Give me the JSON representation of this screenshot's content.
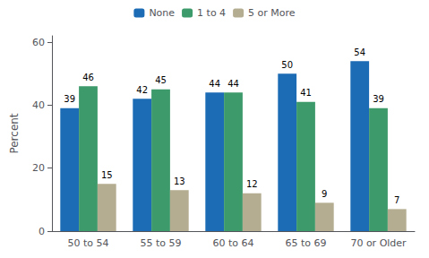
{
  "chart_data": {
    "type": "bar",
    "categories": [
      "50 to 54",
      "55 to 59",
      "60 to 64",
      "65 to 69",
      "70 or Older"
    ],
    "series": [
      {
        "name": "None",
        "color": "#1B6BB5",
        "values": [
          39,
          42,
          44,
          50,
          54
        ]
      },
      {
        "name": "1 to 4",
        "color": "#3D9A6A",
        "values": [
          46,
          45,
          44,
          41,
          39
        ]
      },
      {
        "name": "5 or More",
        "color": "#B5AD91",
        "values": [
          15,
          13,
          12,
          9,
          7
        ]
      }
    ],
    "ylabel": "Percent",
    "ylim": [
      0,
      62
    ],
    "yticks": [
      0,
      20,
      40,
      60
    ],
    "grid": false,
    "legend": "top",
    "data_labels": true
  }
}
